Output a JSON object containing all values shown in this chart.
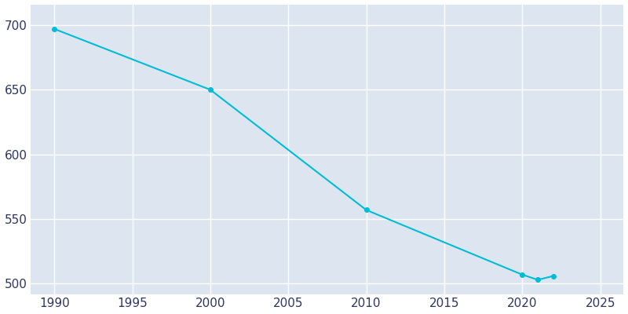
{
  "years": [
    1990,
    2000,
    2010,
    2020,
    2021,
    2022
  ],
  "population": [
    697,
    650,
    557,
    507,
    503,
    506
  ],
  "line_color": "#00bcd4",
  "marker": "o",
  "marker_size": 4,
  "background_color": "#dde6f0",
  "plot_bg_color": "#dde6f0",
  "outer_bg_color": "#ffffff",
  "grid_color": "#ffffff",
  "tick_color": "#2d3561",
  "xlim": [
    1988.5,
    2026.5
  ],
  "ylim": [
    492,
    716
  ],
  "xticks": [
    1990,
    1995,
    2000,
    2005,
    2010,
    2015,
    2020,
    2025
  ],
  "yticks": [
    500,
    550,
    600,
    650,
    700
  ],
  "xlabel": "",
  "ylabel": ""
}
